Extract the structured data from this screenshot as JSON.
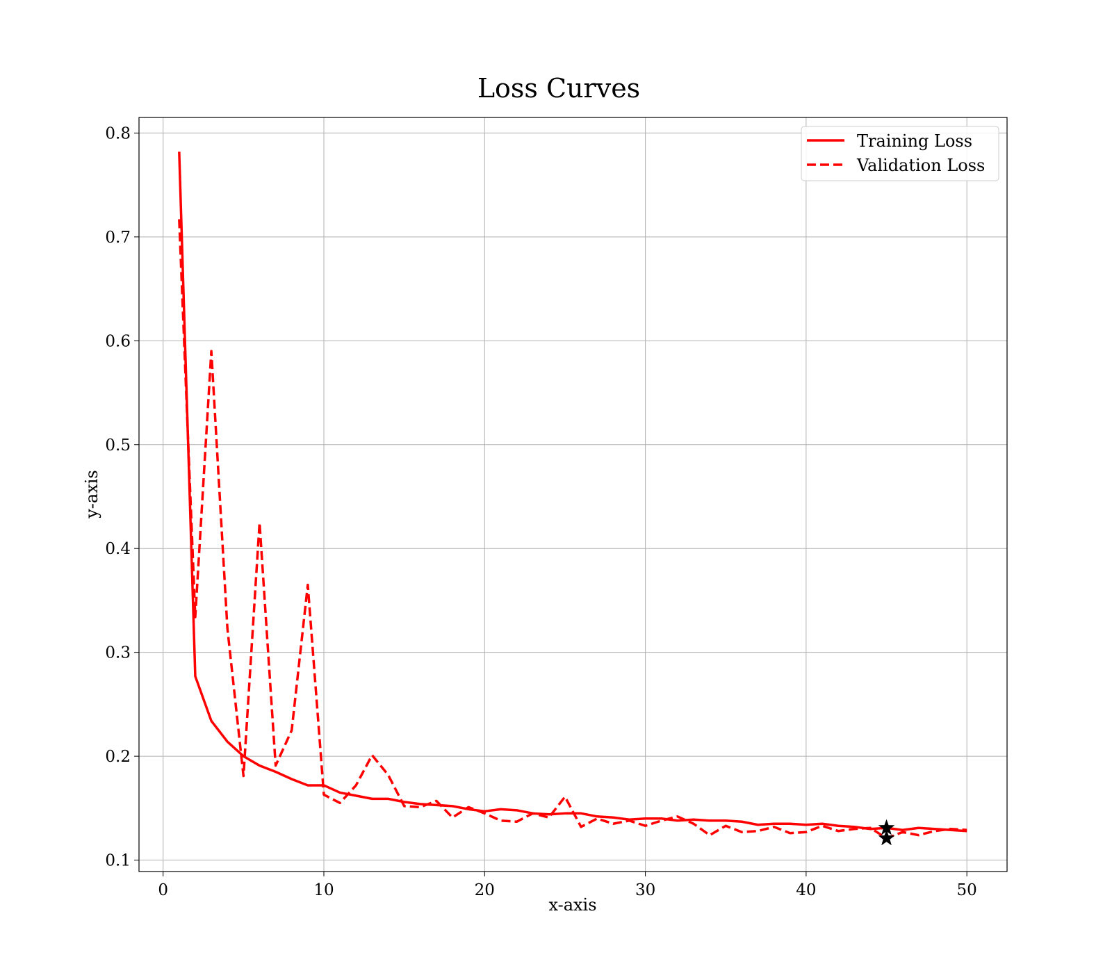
{
  "chart_data": {
    "type": "line",
    "title": "Loss Curves",
    "xlabel": "x-axis",
    "ylabel": "y-axis",
    "xlim": [
      -1.5,
      52.5
    ],
    "ylim": [
      0.089,
      0.815
    ],
    "xticks": [
      0,
      10,
      20,
      30,
      40,
      50
    ],
    "yticks": [
      0.1,
      0.2,
      0.3,
      0.4,
      0.5,
      0.6,
      0.7,
      0.8
    ],
    "xtick_labels": [
      "0",
      "10",
      "20",
      "30",
      "40",
      "50"
    ],
    "ytick_labels": [
      "0.1",
      "0.2",
      "0.3",
      "0.4",
      "0.5",
      "0.6",
      "0.7",
      "0.8"
    ],
    "grid": true,
    "legend_position": "top-right",
    "x": [
      1,
      2,
      3,
      4,
      5,
      6,
      7,
      8,
      9,
      10,
      11,
      12,
      13,
      14,
      15,
      16,
      17,
      18,
      19,
      20,
      21,
      22,
      23,
      24,
      25,
      26,
      27,
      28,
      29,
      30,
      31,
      32,
      33,
      34,
      35,
      36,
      37,
      38,
      39,
      40,
      41,
      42,
      43,
      44,
      45,
      46,
      47,
      48,
      49,
      50
    ],
    "series": [
      {
        "name": "Training Loss",
        "color": "#ff0000",
        "style": "solid",
        "values": [
          0.782,
          0.277,
          0.234,
          0.214,
          0.2,
          0.191,
          0.185,
          0.178,
          0.172,
          0.172,
          0.165,
          0.162,
          0.159,
          0.159,
          0.156,
          0.154,
          0.153,
          0.152,
          0.149,
          0.147,
          0.149,
          0.148,
          0.145,
          0.144,
          0.145,
          0.145,
          0.142,
          0.141,
          0.139,
          0.14,
          0.14,
          0.138,
          0.139,
          0.138,
          0.138,
          0.137,
          0.134,
          0.135,
          0.135,
          0.134,
          0.135,
          0.133,
          0.132,
          0.13,
          0.131,
          0.129,
          0.131,
          0.13,
          0.129,
          0.128
        ]
      },
      {
        "name": "Validation Loss",
        "color": "#ff0000",
        "style": "dashed",
        "values": [
          0.717,
          0.334,
          0.59,
          0.323,
          0.181,
          0.425,
          0.191,
          0.225,
          0.365,
          0.163,
          0.155,
          0.172,
          0.201,
          0.182,
          0.152,
          0.151,
          0.157,
          0.141,
          0.151,
          0.145,
          0.138,
          0.137,
          0.145,
          0.141,
          0.161,
          0.132,
          0.14,
          0.135,
          0.138,
          0.133,
          0.138,
          0.142,
          0.135,
          0.124,
          0.133,
          0.127,
          0.128,
          0.132,
          0.126,
          0.127,
          0.133,
          0.128,
          0.13,
          0.131,
          0.121,
          0.127,
          0.124,
          0.128,
          0.13,
          0.129
        ]
      }
    ],
    "markers": [
      {
        "series": "Training Loss",
        "x": 45,
        "y": 0.131,
        "symbol": "star",
        "color": "#000000"
      },
      {
        "series": "Validation Loss",
        "x": 45,
        "y": 0.121,
        "symbol": "star",
        "color": "#000000"
      }
    ]
  }
}
